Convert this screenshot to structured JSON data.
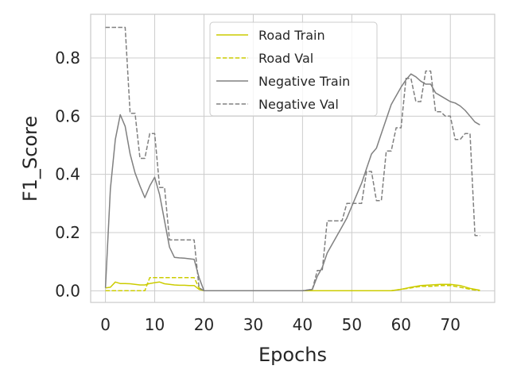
{
  "chart_data": {
    "type": "line",
    "xlabel": "Epochs",
    "ylabel": "F1_Score",
    "xlim": [
      -3,
      79
    ],
    "ylim": [
      -0.04,
      0.95
    ],
    "xticks": [
      0,
      10,
      20,
      30,
      40,
      50,
      60,
      70
    ],
    "yticks": [
      0.0,
      0.2,
      0.4,
      0.6,
      0.8
    ],
    "ytick_labels": [
      "0.0",
      "0.2",
      "0.4",
      "0.6",
      "0.8"
    ],
    "grid": true,
    "legend_position": "top-center",
    "series": [
      {
        "name": "Road Train",
        "color": "#cccc00",
        "dash": "solid",
        "x": [
          0,
          1,
          2,
          3,
          4,
          5,
          6,
          7,
          8,
          9,
          10,
          11,
          12,
          13,
          14,
          15,
          16,
          17,
          18,
          19,
          20,
          21,
          22,
          30,
          40,
          50,
          55,
          58,
          60,
          62,
          64,
          66,
          68,
          70,
          72,
          74,
          76
        ],
        "y": [
          0.01,
          0.012,
          0.03,
          0.025,
          0.025,
          0.024,
          0.022,
          0.02,
          0.02,
          0.025,
          0.028,
          0.03,
          0.024,
          0.022,
          0.02,
          0.019,
          0.019,
          0.018,
          0.018,
          0.005,
          0.0,
          0.0,
          0.0,
          0.0,
          0.0,
          0.0,
          0.0,
          0.0,
          0.005,
          0.012,
          0.018,
          0.02,
          0.022,
          0.022,
          0.018,
          0.008,
          0.002
        ]
      },
      {
        "name": "Road Val",
        "color": "#cccc00",
        "dash": "dashed",
        "x": [
          0,
          1,
          2,
          3,
          4,
          5,
          6,
          7,
          8,
          9,
          10,
          11,
          12,
          13,
          14,
          15,
          16,
          17,
          18,
          19,
          20,
          21,
          22,
          30,
          40,
          50,
          55,
          58,
          60,
          62,
          64,
          66,
          68,
          70,
          72,
          74,
          76
        ],
        "y": [
          0.0,
          0.0,
          0.0,
          0.0,
          0.0,
          0.0,
          0.0,
          0.0,
          0.0,
          0.045,
          0.045,
          0.045,
          0.045,
          0.045,
          0.045,
          0.045,
          0.045,
          0.045,
          0.045,
          0.01,
          0.0,
          0.0,
          0.0,
          0.0,
          0.0,
          0.0,
          0.0,
          0.0,
          0.005,
          0.01,
          0.015,
          0.015,
          0.018,
          0.018,
          0.012,
          0.005,
          0.0
        ]
      },
      {
        "name": "Negative Train",
        "color": "#808080",
        "dash": "solid",
        "x": [
          0,
          1,
          2,
          3,
          4,
          5,
          6,
          7,
          8,
          9,
          10,
          11,
          12,
          13,
          14,
          15,
          16,
          17,
          18,
          19,
          20,
          21,
          22,
          30,
          40,
          42,
          43,
          44,
          45,
          46,
          47,
          48,
          49,
          50,
          51,
          52,
          53,
          54,
          55,
          56,
          57,
          58,
          59,
          60,
          61,
          62,
          63,
          64,
          65,
          66,
          67,
          68,
          69,
          70,
          71,
          72,
          73,
          74,
          75,
          76
        ],
        "y": [
          0.01,
          0.35,
          0.52,
          0.605,
          0.565,
          0.47,
          0.405,
          0.36,
          0.32,
          0.36,
          0.39,
          0.33,
          0.24,
          0.15,
          0.115,
          0.113,
          0.112,
          0.11,
          0.108,
          0.045,
          0.0,
          0.0,
          0.0,
          0.0,
          0.0,
          0.005,
          0.05,
          0.08,
          0.13,
          0.16,
          0.19,
          0.22,
          0.25,
          0.29,
          0.33,
          0.37,
          0.42,
          0.47,
          0.49,
          0.54,
          0.59,
          0.64,
          0.67,
          0.7,
          0.725,
          0.745,
          0.735,
          0.72,
          0.71,
          0.71,
          0.68,
          0.67,
          0.66,
          0.65,
          0.645,
          0.635,
          0.62,
          0.6,
          0.58,
          0.57
        ]
      },
      {
        "name": "Negative Val",
        "color": "#808080",
        "dash": "dashed",
        "x": [
          0,
          1,
          2,
          3,
          4,
          5,
          6,
          7,
          8,
          9,
          10,
          11,
          12,
          13,
          14,
          15,
          16,
          17,
          18,
          19,
          20,
          21,
          22,
          30,
          40,
          42,
          43,
          44,
          45,
          46,
          47,
          48,
          49,
          50,
          51,
          52,
          53,
          54,
          55,
          56,
          57,
          58,
          59,
          60,
          61,
          62,
          63,
          64,
          65,
          66,
          67,
          68,
          69,
          70,
          71,
          72,
          73,
          74,
          75,
          76
        ],
        "y": [
          0.905,
          0.905,
          0.905,
          0.905,
          0.905,
          0.61,
          0.61,
          0.455,
          0.455,
          0.54,
          0.54,
          0.355,
          0.355,
          0.175,
          0.175,
          0.175,
          0.175,
          0.175,
          0.175,
          0.01,
          0.0,
          0.0,
          0.0,
          0.0,
          0.0,
          0.005,
          0.07,
          0.07,
          0.24,
          0.24,
          0.24,
          0.24,
          0.3,
          0.3,
          0.3,
          0.3,
          0.41,
          0.41,
          0.31,
          0.31,
          0.48,
          0.48,
          0.56,
          0.56,
          0.73,
          0.73,
          0.65,
          0.65,
          0.755,
          0.755,
          0.615,
          0.615,
          0.6,
          0.6,
          0.52,
          0.52,
          0.54,
          0.54,
          0.19,
          0.19
        ]
      }
    ]
  }
}
